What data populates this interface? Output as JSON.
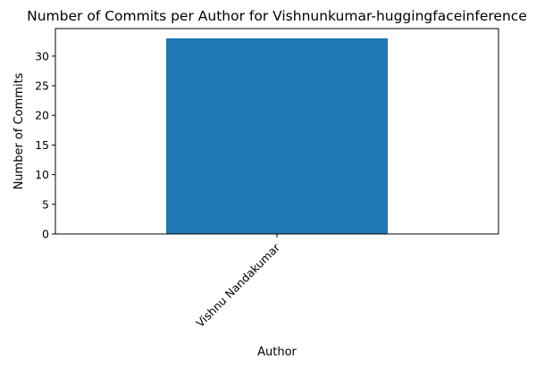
{
  "chart_data": {
    "type": "bar",
    "title": "Number of Commits per Author for Vishnunkumar-huggingfaceinference",
    "xlabel": "Author",
    "ylabel": "Number of Commits",
    "categories": [
      "Vishnu Nandakumar"
    ],
    "values": [
      33
    ],
    "ylim": [
      0,
      34.65
    ],
    "yticks": [
      0,
      5,
      10,
      15,
      20,
      25,
      30
    ],
    "grid": false,
    "legend": "none",
    "bar_color": "#1f77b4",
    "xtick_rotation_deg": 45
  }
}
